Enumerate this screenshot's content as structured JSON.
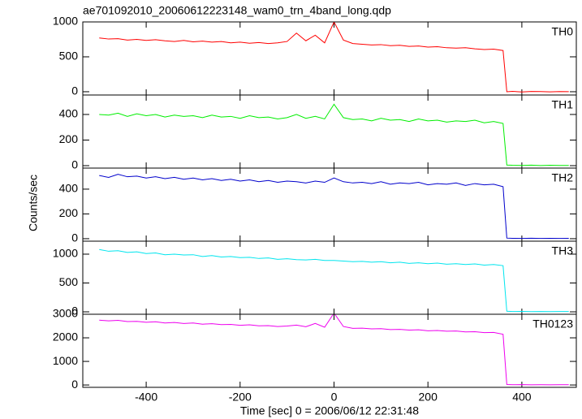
{
  "chart_data": [
    {
      "type": "line",
      "title": "ae701092010_20060612223148_wam0_trn_4band_long.qdp",
      "ylim": [
        -47,
        1000
      ],
      "yticks": [
        0,
        500,
        1000
      ],
      "series": [
        {
          "name": "TH0",
          "color": "#ff0000",
          "values": [
            770,
            755,
            760,
            740,
            750,
            735,
            745,
            730,
            720,
            735,
            715,
            725,
            710,
            720,
            700,
            710,
            695,
            705,
            690,
            700,
            720,
            840,
            730,
            810,
            700,
            1000,
            740,
            690,
            680,
            670,
            675,
            660,
            665,
            650,
            655,
            640,
            645,
            630,
            625,
            630,
            615,
            605,
            610,
            590,
            0,
            5,
            -3,
            4,
            2,
            -2,
            3,
            1
          ]
        }
      ]
    },
    {
      "type": "line",
      "ylim": [
        -19,
        552
      ],
      "yticks": [
        0,
        200,
        400
      ],
      "series": [
        {
          "name": "TH1",
          "color": "#00ee00",
          "values": [
            400,
            395,
            410,
            385,
            405,
            390,
            400,
            380,
            395,
            385,
            390,
            375,
            395,
            380,
            385,
            370,
            390,
            375,
            380,
            365,
            375,
            400,
            370,
            385,
            365,
            480,
            375,
            360,
            365,
            350,
            370,
            355,
            360,
            345,
            365,
            350,
            355,
            340,
            350,
            345,
            355,
            335,
            345,
            330,
            5,
            3,
            2,
            4,
            1,
            3,
            2,
            2
          ]
        }
      ]
    },
    {
      "type": "line",
      "ylabel": "Counts/sec",
      "ylim": [
        -20,
        570
      ],
      "yticks": [
        0,
        200,
        400
      ],
      "series": [
        {
          "name": "TH2",
          "color": "#0000cc",
          "values": [
            510,
            495,
            520,
            500,
            505,
            490,
            500,
            485,
            495,
            480,
            490,
            475,
            485,
            470,
            480,
            465,
            475,
            460,
            470,
            455,
            465,
            460,
            450,
            465,
            455,
            490,
            460,
            450,
            455,
            445,
            460,
            440,
            450,
            445,
            455,
            435,
            445,
            440,
            450,
            430,
            445,
            435,
            440,
            420,
            5,
            3,
            2,
            4,
            2,
            3,
            2,
            3
          ]
        }
      ]
    },
    {
      "type": "line",
      "ylim": [
        -42,
        1225
      ],
      "yticks": [
        0,
        500,
        1000
      ],
      "series": [
        {
          "name": "TH3",
          "color": "#00e5ee",
          "values": [
            1080,
            1050,
            1060,
            1030,
            1040,
            1010,
            1020,
            990,
            1000,
            985,
            990,
            960,
            975,
            950,
            960,
            940,
            945,
            925,
            935,
            910,
            920,
            905,
            900,
            910,
            890,
            890,
            880,
            870,
            875,
            860,
            870,
            850,
            860,
            840,
            850,
            835,
            845,
            825,
            835,
            820,
            830,
            810,
            820,
            800,
            10,
            5,
            8,
            3,
            6,
            4,
            5,
            6
          ]
        }
      ]
    },
    {
      "type": "line",
      "xlabel": "Time [sec] 0 = 2006/06/12 22:31:48",
      "x": [
        -500,
        -480,
        -460,
        -440,
        -420,
        -400,
        -380,
        -360,
        -340,
        -320,
        -300,
        -280,
        -260,
        -240,
        -220,
        -200,
        -180,
        -160,
        -140,
        -120,
        -100,
        -80,
        -60,
        -40,
        -20,
        0,
        20,
        40,
        60,
        80,
        100,
        120,
        140,
        160,
        180,
        200,
        220,
        240,
        260,
        280,
        300,
        320,
        340,
        360,
        368,
        380,
        400,
        420,
        440,
        460,
        480,
        500
      ],
      "xlim": [
        -535,
        516
      ],
      "xticks": [
        -400,
        -200,
        0,
        200,
        400
      ],
      "ylim": [
        -100,
        3000
      ],
      "yticks": [
        0,
        1000,
        2000,
        3000
      ],
      "series": [
        {
          "name": "TH0123",
          "color": "#ee00ee",
          "values": [
            2750,
            2720,
            2740,
            2690,
            2700,
            2660,
            2680,
            2630,
            2650,
            2610,
            2630,
            2580,
            2600,
            2560,
            2570,
            2530,
            2550,
            2510,
            2520,
            2480,
            2500,
            2540,
            2470,
            2610,
            2450,
            3050,
            2480,
            2400,
            2410,
            2380,
            2390,
            2350,
            2360,
            2330,
            2340,
            2300,
            2310,
            2280,
            2290,
            2250,
            2260,
            2220,
            2230,
            2150,
            20,
            10,
            15,
            8,
            12,
            9,
            11,
            10
          ]
        }
      ]
    }
  ]
}
